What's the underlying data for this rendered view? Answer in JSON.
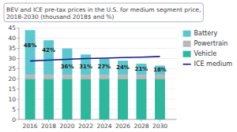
{
  "chart_data": {
    "type": "bar",
    "title": "BEV and ICE pre-tax prices in the U.S. for medium segment price, 2018-2030 (thousand 2018$ and %)",
    "x": [
      2016,
      2018,
      2020,
      2022,
      2024,
      2026,
      2028,
      2030
    ],
    "series": [
      {
        "name": "Vehicle",
        "type": "bar",
        "color": "#2db89e",
        "values": [
          20,
          20,
          20,
          20,
          20,
          20,
          20,
          20
        ]
      },
      {
        "name": "Powertrain",
        "type": "bar",
        "color": "#b8b8b8",
        "values": [
          2.0,
          2.0,
          2.0,
          2.0,
          2.0,
          2.0,
          2.0,
          2.0
        ]
      },
      {
        "name": "Battery",
        "type": "bar",
        "color": "#5bc8d0",
        "values": [
          22.0,
          17.0,
          13.0,
          10.0,
          8.0,
          7.0,
          5.5,
          4.5
        ]
      },
      {
        "name": "ICE medium",
        "type": "line",
        "color": "#1a1a8c",
        "values": [
          28.8,
          29.2,
          29.6,
          30.0,
          30.2,
          30.5,
          30.7,
          31.0
        ]
      }
    ],
    "annotations": [
      {
        "x": 2016,
        "text": "48%"
      },
      {
        "x": 2018,
        "text": "42%"
      },
      {
        "x": 2020,
        "text": "36%"
      },
      {
        "x": 2022,
        "text": "31%"
      },
      {
        "x": 2024,
        "text": "27%"
      },
      {
        "x": 2026,
        "text": "24%"
      },
      {
        "x": 2028,
        "text": "21%"
      },
      {
        "x": 2030,
        "text": "18%"
      }
    ],
    "stacked": true,
    "xlim": [
      2014.8,
      2031.8
    ],
    "xticks": [
      2016,
      2018,
      2020,
      2022,
      2024,
      2026,
      2028,
      2030
    ],
    "ylim": [
      0,
      45
    ],
    "yticks": [
      0,
      5,
      10,
      15,
      20,
      25,
      30,
      35,
      40,
      45
    ],
    "grid": true,
    "legend": "right"
  }
}
